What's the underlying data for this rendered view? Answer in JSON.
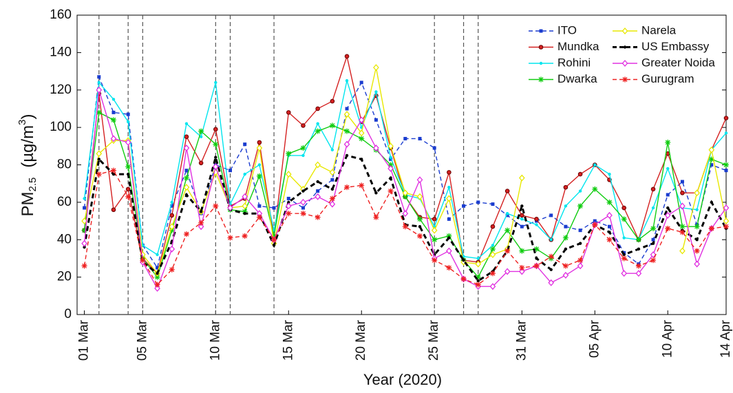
{
  "chart_data": {
    "type": "line",
    "xlabel": "Year (2020)",
    "ylabel": [
      "PM",
      "2.5",
      "(µg/m",
      "3",
      ")"
    ],
    "x": [
      1,
      2,
      3,
      4,
      5,
      6,
      7,
      8,
      9,
      10,
      11,
      12,
      13,
      14,
      15,
      16,
      17,
      18,
      19,
      20,
      21,
      22,
      23,
      24,
      25,
      26,
      27,
      28,
      29,
      30,
      31,
      32,
      33,
      34,
      35,
      36,
      37,
      38,
      39,
      40,
      41,
      42,
      43,
      44,
      45
    ],
    "xlim": [
      0.5,
      45
    ],
    "xticks": [
      {
        "value": 1,
        "label": "01 Mar"
      },
      {
        "value": 5,
        "label": "05 Mar"
      },
      {
        "value": 10,
        "label": "10 Mar"
      },
      {
        "value": 15,
        "label": "15 Mar"
      },
      {
        "value": 20,
        "label": "20 Mar"
      },
      {
        "value": 25,
        "label": "25 Mar"
      },
      {
        "value": 31,
        "label": "31 Mar"
      },
      {
        "value": 36,
        "label": "05 Apr"
      },
      {
        "value": 41,
        "label": "10 Apr"
      },
      {
        "value": 45,
        "label": "14 Apr"
      }
    ],
    "ylim": [
      0,
      160
    ],
    "yticks": [
      0,
      20,
      40,
      60,
      80,
      100,
      120,
      140,
      160
    ],
    "event_lines": [
      2,
      4,
      5,
      10,
      11,
      14,
      25,
      27,
      28
    ],
    "grid": false,
    "legend": "upper right",
    "series": [
      {
        "name": "ITO",
        "color": "#1a3ccf",
        "dash": true,
        "marker": "square",
        "values": [
          57,
          127,
          108,
          107,
          37,
          25,
          58,
          77,
          54,
          80,
          77,
          91,
          58,
          57,
          62,
          57,
          66,
          72,
          110,
          124,
          104,
          83,
          94,
          94,
          89,
          51,
          58,
          60,
          59,
          53,
          47,
          50,
          53,
          47,
          45,
          50,
          47,
          33,
          27,
          40,
          64,
          71,
          48,
          80,
          77
        ]
      },
      {
        "name": "Mundka",
        "color": "#d42020",
        "dash": false,
        "marker": "circle",
        "values": [
          45,
          118,
          56,
          67,
          30,
          22,
          53,
          95,
          81,
          99,
          58,
          62,
          92,
          41,
          108,
          101,
          110,
          114,
          138,
          103,
          117,
          89,
          63,
          52,
          51,
          76,
          29,
          28,
          47,
          66,
          53,
          51,
          40,
          68,
          75,
          80,
          72,
          57,
          40,
          67,
          86,
          65,
          65,
          88,
          105
        ]
      },
      {
        "name": "Rohini",
        "color": "#00e5ee",
        "dash": false,
        "marker": "point",
        "values": [
          62,
          124,
          115,
          103,
          37,
          32,
          60,
          102,
          95,
          124,
          59,
          75,
          80,
          45,
          85,
          85,
          102,
          88,
          125,
          100,
          119,
          84,
          64,
          62,
          47,
          68,
          31,
          30,
          37,
          54,
          51,
          48,
          40,
          58,
          66,
          80,
          75,
          41,
          40,
          57,
          78,
          57,
          56,
          88,
          97
        ]
      },
      {
        "name": "Dwarka",
        "color": "#10cc10",
        "dash": false,
        "marker": "star",
        "values": [
          45,
          108,
          104,
          79,
          30,
          20,
          45,
          73,
          98,
          91,
          56,
          55,
          74,
          42,
          86,
          89,
          98,
          101,
          98,
          94,
          88,
          80,
          63,
          51,
          40,
          42,
          29,
          20,
          35,
          45,
          34,
          35,
          30,
          41,
          58,
          67,
          60,
          51,
          40,
          46,
          92,
          47,
          47,
          83,
          80
        ]
      },
      {
        "name": "Narela",
        "color": "#e8e800",
        "dash": false,
        "marker": "diamond",
        "values": [
          50,
          86,
          93,
          93,
          32,
          22,
          47,
          68,
          55,
          76,
          57,
          58,
          89,
          38,
          75,
          67,
          80,
          76,
          107,
          97,
          132,
          90,
          65,
          63,
          45,
          62,
          28,
          27,
          32,
          35,
          73,
          null,
          null,
          null,
          null,
          null,
          null,
          null,
          null,
          null,
          null,
          34,
          65,
          88,
          50
        ]
      },
      {
        "name": "US Embassy",
        "color": "#000000",
        "dash": true,
        "marker": "point",
        "values": [
          36,
          83,
          75,
          75,
          28,
          22,
          39,
          64,
          55,
          84,
          56,
          54,
          54,
          37,
          60,
          66,
          71,
          67,
          85,
          83,
          65,
          73,
          48,
          47,
          32,
          41,
          29,
          18,
          23,
          34,
          58,
          30,
          24,
          35,
          38,
          48,
          44,
          32,
          35,
          38,
          57,
          45,
          40,
          60,
          46
        ]
      },
      {
        "name": "Greater Noida",
        "color": "#e030e0",
        "dash": false,
        "marker": "diamond",
        "values": [
          38,
          120,
          94,
          92,
          28,
          14,
          35,
          89,
          47,
          79,
          57,
          63,
          54,
          40,
          58,
          60,
          63,
          59,
          91,
          104,
          89,
          78,
          54,
          72,
          30,
          34,
          19,
          15,
          15,
          23,
          23,
          26,
          17,
          21,
          26,
          48,
          53,
          22,
          22,
          32,
          53,
          58,
          27,
          46,
          57
        ]
      },
      {
        "name": "Gurugram",
        "color": "#ee2020",
        "dash": true,
        "marker": "star",
        "values": [
          26,
          75,
          77,
          63,
          29,
          16,
          24,
          43,
          49,
          58,
          41,
          42,
          52,
          40,
          54,
          54,
          52,
          62,
          68,
          69,
          52,
          66,
          47,
          42,
          29,
          25,
          19,
          16,
          22,
          34,
          25,
          26,
          31,
          26,
          29,
          48,
          40,
          30,
          26,
          29,
          46,
          44,
          34,
          46,
          47
        ]
      }
    ]
  }
}
